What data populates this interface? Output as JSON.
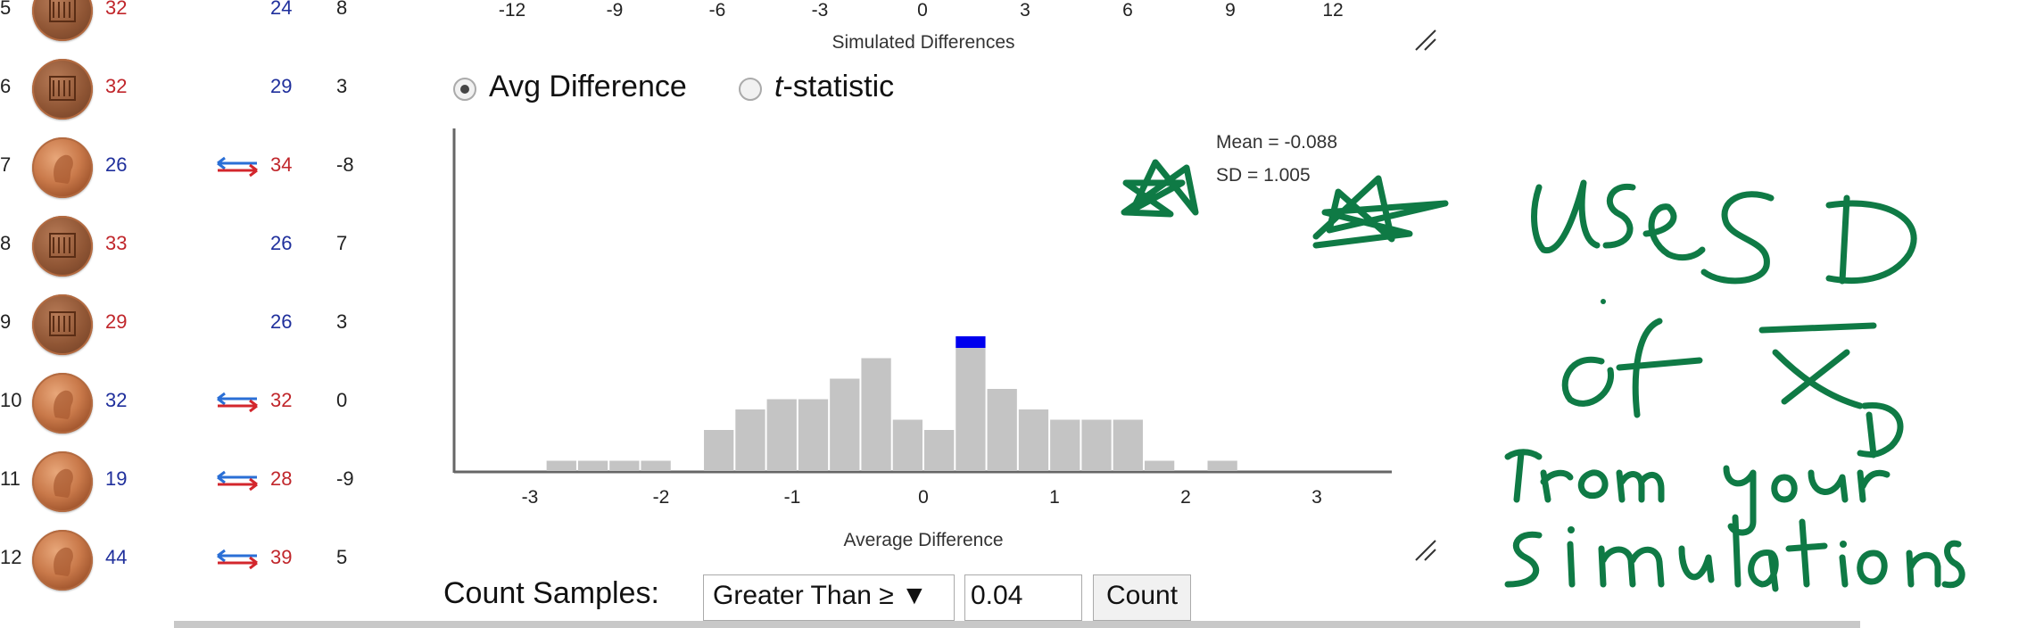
{
  "table": {
    "rows": [
      {
        "num": "5",
        "a": "32",
        "a_color": "red",
        "swap": false,
        "b": "24",
        "b_color": "blue",
        "diff": "8",
        "coin": "tails"
      },
      {
        "num": "6",
        "a": "32",
        "a_color": "red",
        "swap": false,
        "b": "29",
        "b_color": "blue",
        "diff": "3",
        "coin": "tails"
      },
      {
        "num": "7",
        "a": "26",
        "a_color": "blue",
        "swap": true,
        "b": "34",
        "b_color": "red",
        "diff": "-8",
        "coin": "heads"
      },
      {
        "num": "8",
        "a": "33",
        "a_color": "red",
        "swap": false,
        "b": "26",
        "b_color": "blue",
        "diff": "7",
        "coin": "tails"
      },
      {
        "num": "9",
        "a": "29",
        "a_color": "red",
        "swap": false,
        "b": "26",
        "b_color": "blue",
        "diff": "3",
        "coin": "tails"
      },
      {
        "num": "10",
        "a": "32",
        "a_color": "blue",
        "swap": true,
        "b": "32",
        "b_color": "red",
        "diff": "0",
        "coin": "heads"
      },
      {
        "num": "11",
        "a": "19",
        "a_color": "blue",
        "swap": true,
        "b": "28",
        "b_color": "red",
        "diff": "-9",
        "coin": "heads"
      },
      {
        "num": "12",
        "a": "44",
        "a_color": "blue",
        "swap": true,
        "b": "39",
        "b_color": "red",
        "diff": "5",
        "coin": "heads"
      }
    ]
  },
  "top_axis": {
    "ticks": [
      "-12",
      "-9",
      "-6",
      "-3",
      "0",
      "3",
      "6",
      "9",
      "12"
    ],
    "title": "Simulated Differences"
  },
  "stat_options": {
    "avg_label": "Avg Difference",
    "t_label_italic": "t",
    "t_label_rest": "-statistic",
    "selected": "avg"
  },
  "histogram_stats": {
    "mean": "Mean = -0.088",
    "sd": "SD = 1.005"
  },
  "chart_data": {
    "type": "bar",
    "title": "",
    "xlabel": "Average Difference",
    "ylabel": "",
    "x_ticks": [
      "-3",
      "-2",
      "-1",
      "0",
      "1",
      "2",
      "3"
    ],
    "xlim": [
      -3.6,
      3.6
    ],
    "bin_width": 0.24,
    "bins": [
      {
        "x": -2.76,
        "count": 1
      },
      {
        "x": -2.52,
        "count": 1
      },
      {
        "x": -2.28,
        "count": 1
      },
      {
        "x": -2.04,
        "count": 1
      },
      {
        "x": -1.56,
        "count": 4
      },
      {
        "x": -1.32,
        "count": 6
      },
      {
        "x": -1.08,
        "count": 7
      },
      {
        "x": -0.84,
        "count": 7
      },
      {
        "x": -0.6,
        "count": 9
      },
      {
        "x": -0.36,
        "count": 11
      },
      {
        "x": -0.12,
        "count": 5
      },
      {
        "x": 0.12,
        "count": 4
      },
      {
        "x": 0.36,
        "count": 12
      },
      {
        "x": 0.6,
        "count": 8
      },
      {
        "x": 0.84,
        "count": 6
      },
      {
        "x": 1.08,
        "count": 5
      },
      {
        "x": 1.32,
        "count": 5
      },
      {
        "x": 1.56,
        "count": 5
      },
      {
        "x": 1.8,
        "count": 1
      },
      {
        "x": 2.28,
        "count": 1
      }
    ],
    "highlight_bin_x": 0.36,
    "bar_color": "#c4c4c4",
    "highlight_color": "#0000ee",
    "ymax": 13
  },
  "count_controls": {
    "label": "Count Samples:",
    "mode": "Greater Than ≥ ▼",
    "threshold": "0.04",
    "button": "Count"
  },
  "annotation": {
    "lines": [
      "Use SD",
      "of x̄D",
      "from your",
      "simulations"
    ],
    "ink_color": "#0f7a45"
  }
}
